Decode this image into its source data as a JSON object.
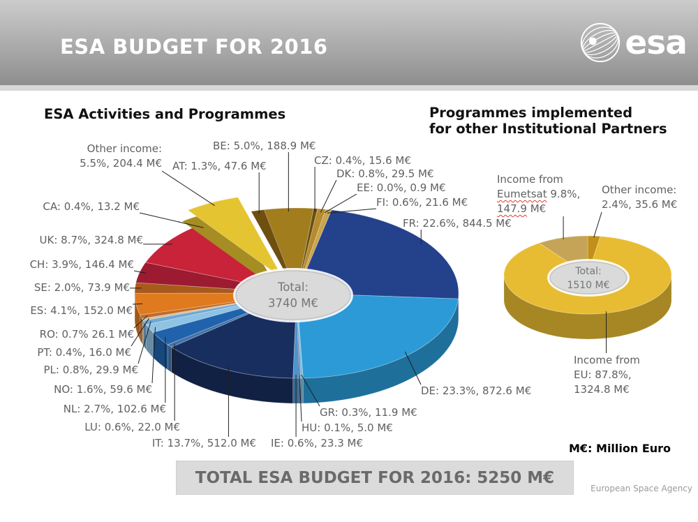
{
  "header": {
    "title": "ESA BUDGET FOR 2016",
    "logo_text": "esa"
  },
  "left_chart": {
    "title": "ESA Activities and Programmes"
  },
  "right_chart": {
    "title_line1": "Programmes implemented",
    "title_line2": "for other Institutional Partners"
  },
  "footer": {
    "unit_note": "M€: Million Euro",
    "total_banner": "TOTAL ESA BUDGET FOR 2016: 5250 M€",
    "agency": "European Space Agency"
  },
  "chart_data": [
    {
      "type": "pie",
      "style": "3d-exploded",
      "title": "ESA Activities and Programmes",
      "unit": "M€",
      "center_label": [
        "Total:",
        "3740 M€"
      ],
      "total_meur": 3740,
      "segments": [
        {
          "code": "BE",
          "pct": 5.0,
          "value": 188.9,
          "color": "#A17D1E",
          "lines": [
            "BE: 5.0%, 188.9 M€"
          ]
        },
        {
          "code": "CZ",
          "pct": 0.4,
          "value": 15.6,
          "color": "#6B5010",
          "lines": [
            "CZ: 0.4%, 15.6 M€"
          ]
        },
        {
          "code": "DK",
          "pct": 0.8,
          "value": 29.5,
          "color": "#B68B2D",
          "lines": [
            "DK: 0.8%, 29.5 M€"
          ]
        },
        {
          "code": "EE",
          "pct": 0.0,
          "value": 0.9,
          "color": "#8A6A18",
          "lines": [
            "EE: 0.0%, 0.9 M€"
          ]
        },
        {
          "code": "FI",
          "pct": 0.6,
          "value": 21.6,
          "color": "#C9A54E",
          "lines": [
            "FI: 0.6%, 21.6 M€"
          ]
        },
        {
          "code": "FR",
          "pct": 22.6,
          "value": 844.5,
          "color": "#24418C",
          "lines": [
            "FR: 22.6%, 844.5 M€"
          ]
        },
        {
          "code": "DE",
          "pct": 23.3,
          "value": 872.6,
          "color": "#2B9AD7",
          "lines": [
            "DE: 23.3%, 872.6 M€"
          ]
        },
        {
          "code": "GR",
          "pct": 0.3,
          "value": 11.9,
          "color": "#7FBCE0",
          "lines": [
            "GR: 0.3%, 11.9 M€"
          ]
        },
        {
          "code": "HU",
          "pct": 0.1,
          "value": 5.0,
          "color": "#12254F",
          "lines": [
            "HU: 0.1%, 5.0 M€"
          ]
        },
        {
          "code": "IE",
          "pct": 0.6,
          "value": 23.3,
          "color": "#4E94CC",
          "lines": [
            "IE: 0.6%, 23.3 M€"
          ]
        },
        {
          "code": "IT",
          "pct": 13.7,
          "value": 512.0,
          "color": "#182E5F",
          "lines": [
            "IT: 13.7%, 512.0 M€"
          ]
        },
        {
          "code": "LU",
          "pct": 0.6,
          "value": 22.0,
          "color": "#4472A8",
          "lines": [
            "LU: 0.6%, 22.0 M€"
          ]
        },
        {
          "code": "NL",
          "pct": 2.7,
          "value": 102.6,
          "color": "#2063AC",
          "lines": [
            "NL: 2.7%, 102.6 M€"
          ]
        },
        {
          "code": "NO",
          "pct": 1.6,
          "value": 59.6,
          "color": "#8FC3E4",
          "lines": [
            "NO: 1.6%, 59.6 M€"
          ]
        },
        {
          "code": "PL",
          "pct": 0.8,
          "value": 29.9,
          "color": "#6FA8D4",
          "lines": [
            "PL: 0.8%, 29.9 M€"
          ]
        },
        {
          "code": "PT",
          "pct": 0.4,
          "value": 16.0,
          "color": "#D9BE93",
          "lines": [
            "PT: 0.4%, 16.0 M€"
          ]
        },
        {
          "code": "RO",
          "pct": 0.7,
          "value": 26.1,
          "color": "#C06B2B",
          "lines": [
            "RO: 0.7% 26.1 M€"
          ]
        },
        {
          "code": "ES",
          "pct": 4.1,
          "value": 152.0,
          "color": "#E07A1E",
          "lines": [
            "ES: 4.1%, 152.0 M€"
          ]
        },
        {
          "code": "SE",
          "pct": 2.0,
          "value": 73.9,
          "color": "#A85A1C",
          "lines": [
            "SE: 2.0%, 73.9 M€"
          ]
        },
        {
          "code": "CH",
          "pct": 3.9,
          "value": 146.4,
          "color": "#9C1B30",
          "lines": [
            "CH: 3.9%, 146.4 M€"
          ]
        },
        {
          "code": "UK",
          "pct": 8.7,
          "value": 324.8,
          "color": "#C82339",
          "lines": [
            "UK: 8.7%, 324.8 M€"
          ]
        },
        {
          "code": "CA",
          "pct": 0.4,
          "value": 13.2,
          "color": "#D9C68F",
          "lines": [
            "CA: 0.4%, 13.2 M€"
          ]
        },
        {
          "code": "OTHER",
          "pct": 5.5,
          "value": 204.4,
          "color": "#E5C431",
          "lines": [
            "Other income:",
            "5.5%, 204.4 M€"
          ],
          "exploded": true
        },
        {
          "code": "AT",
          "pct": 1.3,
          "value": 47.6,
          "color": "#6E4F10",
          "lines": [
            "AT: 1.3%, 47.6 M€"
          ]
        }
      ]
    },
    {
      "type": "pie",
      "style": "3d",
      "title": "Programmes implemented for other Institutional Partners",
      "unit": "M€",
      "center_label": [
        "Total:",
        "1510 M€"
      ],
      "total_meur": 1510,
      "segments": [
        {
          "code": "OTHER2",
          "pct": 2.4,
          "value": 35.6,
          "color": "#C29018",
          "lines": [
            "Other income:",
            "2.4%, 35.6 M€"
          ]
        },
        {
          "code": "EU",
          "pct": 87.8,
          "value": 1324.8,
          "color": "#E7BC32",
          "lines": [
            "Income from",
            "EU: 87.8%,",
            "1324.8 M€"
          ]
        },
        {
          "code": "EUMETSAT",
          "pct": 9.8,
          "value": 147.9,
          "color": "#C5A457",
          "lines": [
            "Income from",
            "Eumetsat 9.8%,",
            "147.9 M€"
          ],
          "wavy_words": [
            "Eumetsat",
            "147.9"
          ]
        }
      ]
    }
  ]
}
